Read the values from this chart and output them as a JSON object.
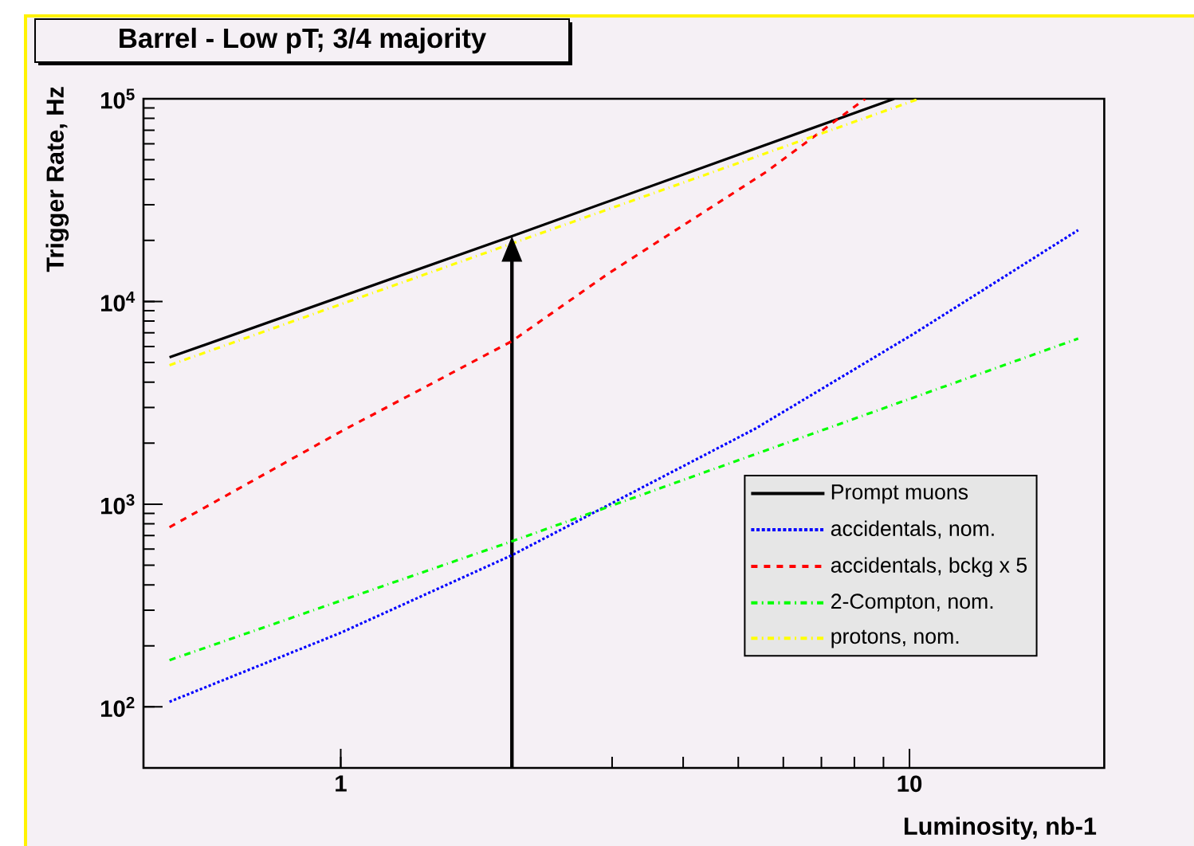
{
  "chart_data": {
    "type": "line",
    "title": "Barrel - Low pT; 3/4 majority",
    "xlabel": "Luminosity, nb-1",
    "ylabel": "Trigger Rate, Hz",
    "log": "xy",
    "xlim": [
      0.45,
      22
    ],
    "ylim": [
      50,
      100000
    ],
    "xticks": [
      1,
      10
    ],
    "yticks": [
      {
        "value": 100,
        "label": "10$^{2}$"
      },
      {
        "value": 1000,
        "label": "10$^{3}$"
      },
      {
        "value": 10000,
        "label": "10$^{4}$"
      },
      {
        "value": 100000,
        "label": "10$^{5}$"
      }
    ],
    "grid": false,
    "legend": "right",
    "ref_lines": [
      {
        "axis": "x",
        "value": 2,
        "color": "#000000"
      }
    ],
    "series": [
      {
        "name": "Prompt muons",
        "color": "#000000",
        "line_style": "solid",
        "x": [
          0.5,
          2,
          9.4
        ],
        "values": [
          5300,
          21000,
          100000
        ]
      },
      {
        "name": "accidentals, nom.",
        "color": "#0000ff",
        "line_style": "dotted",
        "x": [
          0.5,
          1,
          2,
          5.36,
          10.2,
          19.8
        ],
        "values": [
          106,
          232,
          560,
          2360,
          6960,
          22500
        ]
      },
      {
        "name": "accidentals, bckg x 5",
        "color": "#ff0000",
        "line_style": "dashed",
        "x": [
          0.5,
          1,
          2,
          2.94,
          5.6,
          8.36
        ],
        "values": [
          770,
          2280,
          6370,
          13600,
          43600,
          100000
        ]
      },
      {
        "name": "2-Compton, nom.",
        "color": "#00ff00",
        "line_style": "dashdot",
        "x": [
          0.5,
          2,
          19.8
        ],
        "values": [
          170,
          656,
          6560
        ]
      },
      {
        "name": "protons, nom.",
        "color": "#ffff00",
        "line_style": "dashdot",
        "x": [
          0.5,
          10.4
        ],
        "values": [
          4850,
          100000
        ]
      }
    ]
  }
}
